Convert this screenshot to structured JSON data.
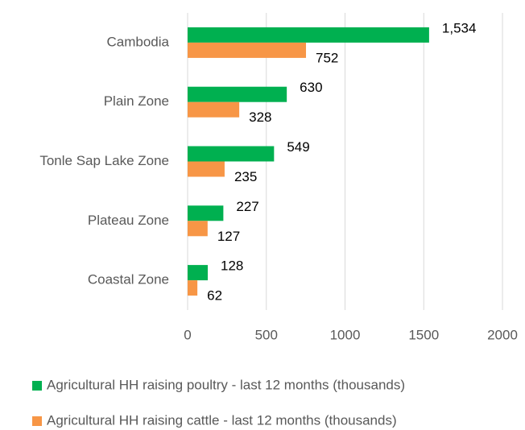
{
  "chart_data": {
    "type": "bar",
    "orientation": "horizontal",
    "categories": [
      "Cambodia",
      "Plain Zone",
      "Tonle Sap Lake Zone",
      "Plateau Zone",
      "Coastal Zone"
    ],
    "series": [
      {
        "name": "Agricultural HH raising poultry - last 12 months (thousands)",
        "color": "#00b050",
        "values": [
          1534,
          630,
          549,
          227,
          128
        ],
        "value_labels": [
          "1,534",
          "630",
          "549",
          "227",
          "128"
        ]
      },
      {
        "name": "Agricultural HH raising cattle - last 12 months (thousands)",
        "color": "#f79646",
        "values": [
          752,
          328,
          235,
          127,
          62
        ]
      }
    ],
    "xlim": [
      0,
      2000
    ],
    "xticks": [
      0,
      500,
      1000,
      1500,
      2000
    ],
    "grid": true,
    "legend": "bottom"
  }
}
